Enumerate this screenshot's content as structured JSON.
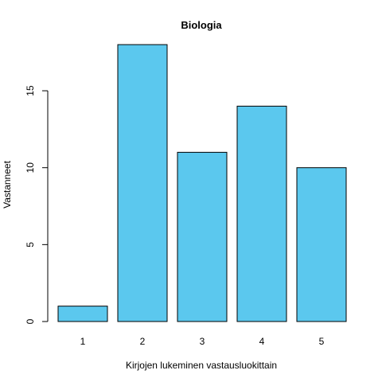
{
  "chart_data": {
    "type": "bar",
    "title": "Biologia",
    "xlabel": "Kirjojen lukeminen vastausluokittain",
    "ylabel": "Vastanneet",
    "categories": [
      "1",
      "2",
      "3",
      "4",
      "5"
    ],
    "values": [
      1,
      18,
      11,
      14,
      10
    ],
    "yticks": [
      0,
      5,
      10,
      15
    ],
    "ylim": [
      0,
      18
    ],
    "grid": false,
    "legend": "none",
    "bar_color": "#5BC8EE",
    "bar_border_color": "#000000"
  }
}
